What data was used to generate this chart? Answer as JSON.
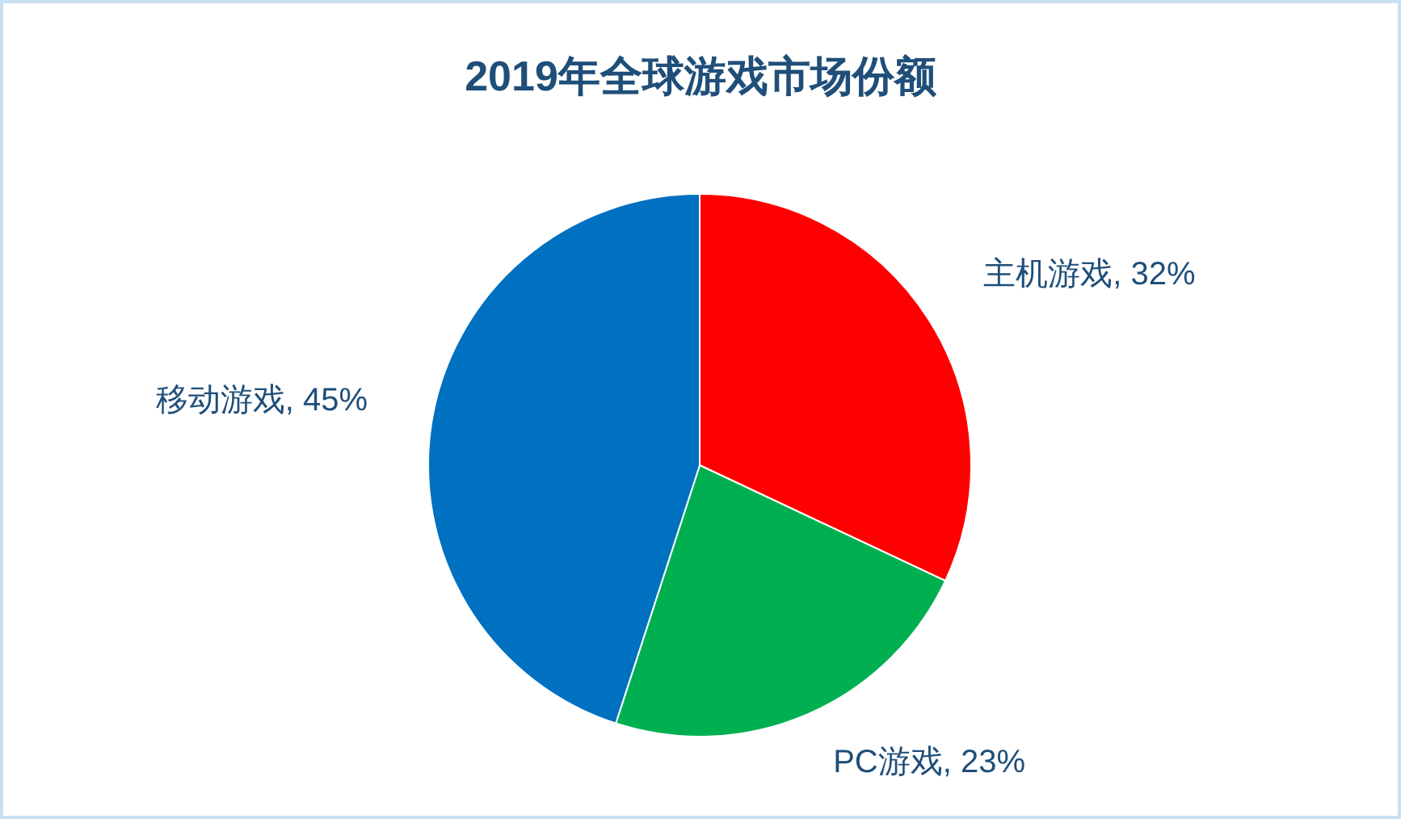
{
  "chart_data": {
    "type": "pie",
    "title": "2019年全球游戏市场份额",
    "categories": [
      "主机游戏",
      "PC游戏",
      "移动游戏"
    ],
    "values": [
      32,
      23,
      45
    ],
    "value_labels": [
      "32%",
      "23%",
      "45%"
    ],
    "colors": [
      "#ff0000",
      "#00b050",
      "#0070c0"
    ]
  }
}
